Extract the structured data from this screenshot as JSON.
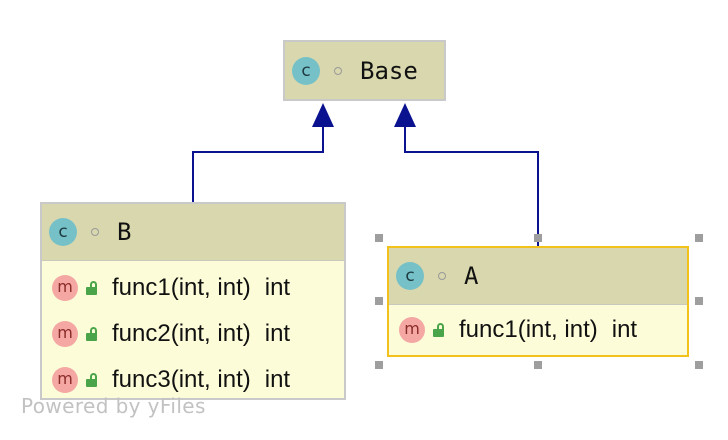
{
  "diagram": {
    "classes": {
      "base": {
        "icon_letter": "c",
        "name": "Base",
        "methods": []
      },
      "b": {
        "icon_letter": "c",
        "name": "B",
        "methods": [
          {
            "icon_letter": "m",
            "signature": "func1(int, int)",
            "return_type": "int"
          },
          {
            "icon_letter": "m",
            "signature": "func2(int, int)",
            "return_type": "int"
          },
          {
            "icon_letter": "m",
            "signature": "func3(int, int)",
            "return_type": "int"
          }
        ]
      },
      "a": {
        "icon_letter": "c",
        "name": "A",
        "selected": true,
        "methods": [
          {
            "icon_letter": "m",
            "signature": "func1(int, int)",
            "return_type": "int"
          }
        ]
      }
    },
    "edges": [
      {
        "from": "B",
        "to": "Base",
        "kind": "inheritance"
      },
      {
        "from": "A",
        "to": "Base",
        "kind": "inheritance"
      }
    ],
    "colors": {
      "edge": "#0b1290",
      "header": "#d8d7ad",
      "body": "#fcfcd8",
      "selection": "#f2c11a",
      "class_icon": "#76c1c8",
      "method_icon": "#f4a7a3",
      "public_lock": "#4aa54a"
    }
  },
  "watermark": "Powered by yFiles"
}
